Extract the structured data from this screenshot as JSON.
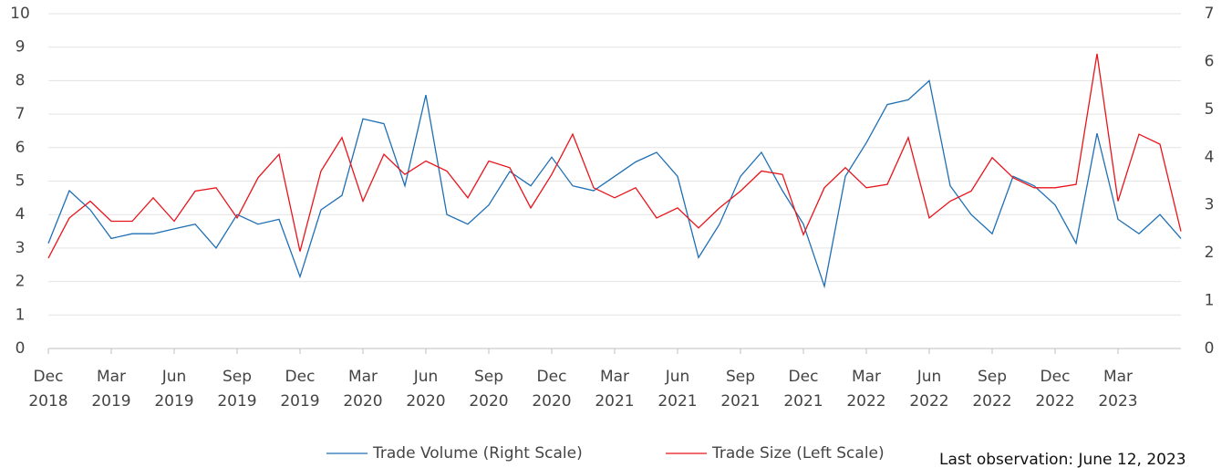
{
  "chart_data": {
    "type": "line",
    "annotation": "Last observation: June 12, 2023",
    "x": [
      "2018-12",
      "2019-01",
      "2019-02",
      "2019-03",
      "2019-04",
      "2019-05",
      "2019-06",
      "2019-07",
      "2019-08",
      "2019-09",
      "2019-10",
      "2019-11",
      "2019-12",
      "2020-01",
      "2020-02",
      "2020-03",
      "2020-04",
      "2020-05",
      "2020-06",
      "2020-07",
      "2020-08",
      "2020-09",
      "2020-10",
      "2020-11",
      "2020-12",
      "2021-01",
      "2021-02",
      "2021-03",
      "2021-04",
      "2021-05",
      "2021-06",
      "2021-07",
      "2021-08",
      "2021-09",
      "2021-10",
      "2021-11",
      "2021-12",
      "2022-01",
      "2022-02",
      "2022-03",
      "2022-04",
      "2022-05",
      "2022-06",
      "2022-07",
      "2022-08",
      "2022-09",
      "2022-10",
      "2022-11",
      "2022-12",
      "2023-01",
      "2023-02",
      "2023-03",
      "2023-04",
      "2023-05",
      "2023-06"
    ],
    "series": [
      {
        "name": "Trade Volume (Right Scale)",
        "color": "#1f6fb4",
        "axis": "y2",
        "values": [
          2.2,
          3.3,
          2.9,
          2.3,
          2.4,
          2.4,
          2.5,
          2.6,
          2.1,
          2.8,
          2.6,
          2.7,
          1.5,
          2.9,
          3.2,
          4.8,
          4.7,
          3.4,
          5.3,
          2.8,
          2.6,
          3.0,
          3.7,
          3.4,
          4.0,
          3.4,
          3.3,
          3.6,
          3.9,
          4.1,
          3.6,
          1.9,
          2.6,
          3.6,
          4.1,
          3.3,
          2.6,
          1.3,
          3.6,
          4.3,
          5.1,
          5.2,
          5.6,
          3.4,
          2.8,
          2.4,
          3.6,
          3.4,
          3.0,
          2.2,
          4.5,
          2.7,
          2.4,
          2.8,
          2.3
        ]
      },
      {
        "name": "Trade Size (Left Scale)",
        "color": "#e8141b",
        "values": [
          2.7,
          3.9,
          4.4,
          3.8,
          3.8,
          4.5,
          3.8,
          4.7,
          4.8,
          3.9,
          5.1,
          5.8,
          2.9,
          5.3,
          6.3,
          4.4,
          5.8,
          5.2,
          5.6,
          5.3,
          4.5,
          5.6,
          5.4,
          4.2,
          5.2,
          6.4,
          4.8,
          4.5,
          4.8,
          3.9,
          4.2,
          3.6,
          4.2,
          4.7,
          5.3,
          5.2,
          3.4,
          4.8,
          5.4,
          4.8,
          4.9,
          6.3,
          3.9,
          4.4,
          4.7,
          5.7,
          5.1,
          4.8,
          4.8,
          4.9,
          8.8,
          4.4,
          6.4,
          6.1,
          3.5
        ]
      }
    ],
    "xlim": [
      "2018-12",
      "2023-06"
    ],
    "xticks": [
      {
        "value": "2018-12",
        "label": "Dec 2018"
      },
      {
        "value": "2019-03",
        "label": "Mar 2019"
      },
      {
        "value": "2019-06",
        "label": "Jun 2019"
      },
      {
        "value": "2019-09",
        "label": "Sep 2019"
      },
      {
        "value": "2019-12",
        "label": "Dec 2019"
      },
      {
        "value": "2020-03",
        "label": "Mar 2020"
      },
      {
        "value": "2020-06",
        "label": "Jun 2020"
      },
      {
        "value": "2020-09",
        "label": "Sep 2020"
      },
      {
        "value": "2020-12",
        "label": "Dec 2020"
      },
      {
        "value": "2021-03",
        "label": "Mar 2021"
      },
      {
        "value": "2021-06",
        "label": "Jun 2021"
      },
      {
        "value": "2021-09",
        "label": "Sep 2021"
      },
      {
        "value": "2021-12",
        "label": "Dec 2021"
      },
      {
        "value": "2022-03",
        "label": "Mar 2022"
      },
      {
        "value": "2022-06",
        "label": "Jun 2022"
      },
      {
        "value": "2022-09",
        "label": "Sep 2022"
      },
      {
        "value": "2022-12",
        "label": "Dec 2022"
      },
      {
        "value": "2023-03",
        "label": "Mar 2023"
      }
    ],
    "ylim": [
      0,
      10
    ],
    "yticks": [
      0,
      1,
      2,
      3,
      4,
      5,
      6,
      7,
      8,
      9,
      10
    ],
    "y2lim": [
      0,
      7
    ],
    "y2ticks": [
      0,
      1,
      2,
      3,
      4,
      5,
      6,
      7
    ],
    "grid": true,
    "legend": "bottom"
  }
}
